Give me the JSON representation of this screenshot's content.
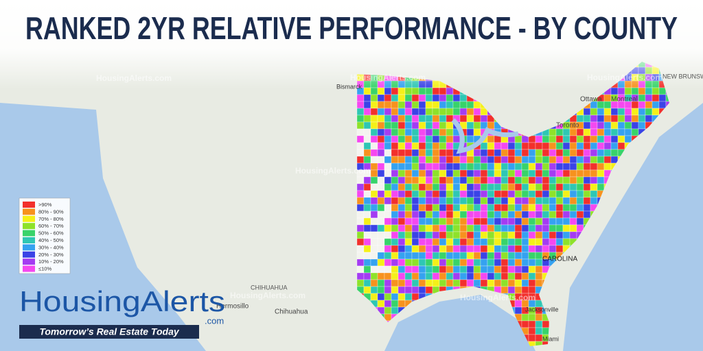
{
  "header": {
    "title": "RANKED 2YR RELATIVE PERFORMANCE - BY COUNTY"
  },
  "legend": {
    "items": [
      {
        "label": ">90%",
        "color": "#f2302c"
      },
      {
        "label": "80% - 90%",
        "color": "#f7921e"
      },
      {
        "label": "70% - 80%",
        "color": "#f5f018"
      },
      {
        "label": "60% - 70%",
        "color": "#8ee22a"
      },
      {
        "label": "50% - 60%",
        "color": "#38d36a"
      },
      {
        "label": "40% - 50%",
        "color": "#2ec7b4"
      },
      {
        "label": "30% - 40%",
        "color": "#35a2f0"
      },
      {
        "label": "20% - 30%",
        "color": "#3a43e6"
      },
      {
        "label": "10% - 20%",
        "color": "#a43cf2"
      },
      {
        "label": "≤10%",
        "color": "#f548f0"
      }
    ]
  },
  "map_labels": [
    "Ottawa",
    "Montreal",
    "Toronto",
    "NEW BRUNSWICK",
    "Bismarck",
    "Hermosillo",
    "Chihuahua",
    "CHIHUAHUA",
    "CAROLINA",
    "Jacksonville",
    "Miami"
  ],
  "watermarks": [
    "HousingAlerts.com",
    "HousingAlerts.com",
    "HousingAlerts.com",
    "HousingAlerts.com",
    "HousingAlerts.com",
    "HousingAlerts.com"
  ],
  "logo": {
    "name": "HousingAlerts",
    "suffix": ".com",
    "tagline": "Tomorrow’s Real Estate Today"
  }
}
